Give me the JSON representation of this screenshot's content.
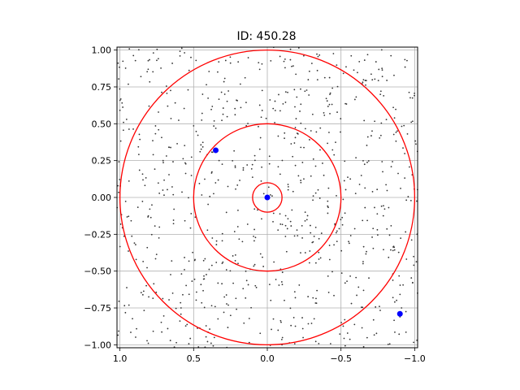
{
  "chart_data": {
    "type": "scatter",
    "title": "ID: 450.28",
    "xlabel": "",
    "ylabel": "",
    "xlim": [
      1.02,
      -1.02
    ],
    "ylim": [
      -1.02,
      1.02
    ],
    "x_reversed": true,
    "grid": true,
    "xticks": [
      1.0,
      0.5,
      0.0,
      -0.5,
      -1.0
    ],
    "xtick_labels": [
      "1.0",
      "0.5",
      "0.0",
      "−0.5",
      "−1.0"
    ],
    "yticks": [
      1.0,
      0.75,
      0.5,
      0.25,
      0.0,
      -0.25,
      -0.5,
      -0.75,
      -1.0
    ],
    "ytick_labels": [
      "1.00",
      "0.75",
      "0.50",
      "0.25",
      "0.00",
      "−0.25",
      "−0.50",
      "−0.75",
      "−1.00"
    ],
    "circles": [
      {
        "center": [
          0,
          0
        ],
        "radius": 0.1,
        "color": "#ff0000"
      },
      {
        "center": [
          0,
          0
        ],
        "radius": 0.5,
        "color": "#ff0000"
      },
      {
        "center": [
          0,
          0
        ],
        "radius": 1.0,
        "color": "#ff0000"
      }
    ],
    "highlight_points": [
      {
        "x": 0.0,
        "y": 0.0,
        "color": "#0000ff"
      },
      {
        "x": 0.35,
        "y": 0.32,
        "color": "#0000ff"
      },
      {
        "x": -0.9,
        "y": -0.79,
        "color": "#0000ff"
      }
    ],
    "background_points": {
      "count": 800,
      "distribution": "uniform",
      "range": [
        -1.02,
        1.02
      ],
      "color": "#333333"
    },
    "colors": {
      "circle": "#ff0000",
      "highlight": "#0000ff",
      "grid": "#b0b0b0",
      "dots": "#333333"
    }
  }
}
